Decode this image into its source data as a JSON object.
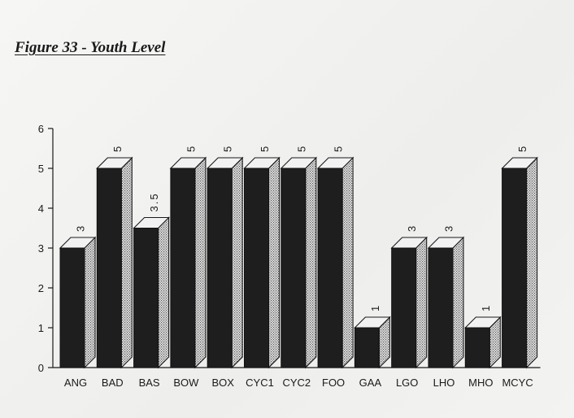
{
  "chart_data": {
    "type": "bar",
    "title": "Figure 33 - Youth Level",
    "categories": [
      "ANG",
      "BAD",
      "BAS",
      "BOW",
      "BOX",
      "CYC1",
      "CYC2",
      "FOO",
      "GAA",
      "LGO",
      "LHO",
      "MHO",
      "MCYC"
    ],
    "values": [
      3,
      5,
      3.5,
      5,
      5,
      5,
      5,
      5,
      1,
      3,
      3,
      1,
      5
    ],
    "data_labels": [
      "3",
      "5",
      "3.5",
      "5",
      "5",
      "5",
      "5",
      "5",
      "1",
      "3",
      "3",
      "1",
      "5"
    ],
    "yticks": [
      "0",
      "1",
      "2",
      "3",
      "4",
      "5",
      "6"
    ],
    "ylim": [
      0,
      6
    ],
    "xlabel": "",
    "ylabel": "",
    "grid": false,
    "style": "3d-bars",
    "colors": {
      "bar_front": "#1e1e1e",
      "bar_top": "#f2f2f2",
      "bar_side": "#c8c8c8",
      "axis": "#1a1a1a"
    }
  }
}
